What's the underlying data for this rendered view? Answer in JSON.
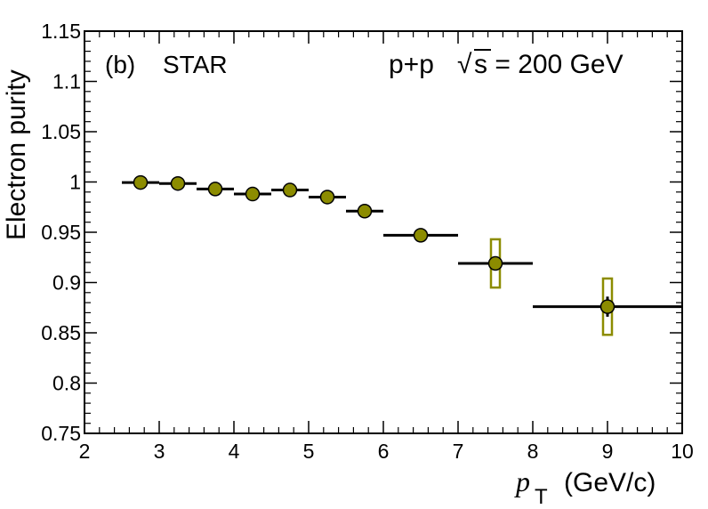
{
  "chart_data": {
    "type": "scatter",
    "title": "",
    "xlabel": "(GeV/c)",
    "xlabel_symbol": "p",
    "xlabel_subscript": "T",
    "ylabel": "Electron purity",
    "xlim": [
      2,
      10
    ],
    "ylim": [
      0.75,
      1.15
    ],
    "x_ticks": [
      "2",
      "3",
      "4",
      "5",
      "6",
      "7",
      "8",
      "9",
      "10"
    ],
    "y_ticks": [
      "0.75",
      "0.8",
      "0.85",
      "0.9",
      "0.95",
      "1",
      "1.05",
      "1.1",
      "1.15"
    ],
    "annotations": {
      "panel": "(b)",
      "experiment": "STAR",
      "system": "p+p",
      "sqrt_symbol": "√",
      "energy": "s = 200 GeV"
    },
    "colors": {
      "marker_fill": "#8c8c00",
      "marker_edge": "#000000",
      "syst_box": "#8c8c00",
      "line": "#000000"
    },
    "series": [
      {
        "name": "Electron purity",
        "points": [
          {
            "x": 2.75,
            "xlow": 2.5,
            "xhigh": 3.0,
            "y": 0.9995,
            "stat": 0.0,
            "syst": 0.0
          },
          {
            "x": 3.25,
            "xlow": 3.0,
            "xhigh": 3.5,
            "y": 0.9985,
            "stat": 0.0,
            "syst": 0.0
          },
          {
            "x": 3.75,
            "xlow": 3.5,
            "xhigh": 4.0,
            "y": 0.993,
            "stat": 0.0,
            "syst": 0.0
          },
          {
            "x": 4.25,
            "xlow": 4.0,
            "xhigh": 4.5,
            "y": 0.988,
            "stat": 0.0,
            "syst": 0.0
          },
          {
            "x": 4.75,
            "xlow": 4.5,
            "xhigh": 5.0,
            "y": 0.992,
            "stat": 0.0,
            "syst": 0.0
          },
          {
            "x": 5.25,
            "xlow": 5.0,
            "xhigh": 5.5,
            "y": 0.985,
            "stat": 0.0,
            "syst": 0.0
          },
          {
            "x": 5.75,
            "xlow": 5.5,
            "xhigh": 6.0,
            "y": 0.971,
            "stat": 0.0,
            "syst": 0.0
          },
          {
            "x": 6.5,
            "xlow": 6.0,
            "xhigh": 7.0,
            "y": 0.947,
            "stat": 0.0,
            "syst": 0.0
          },
          {
            "x": 7.5,
            "xlow": 7.0,
            "xhigh": 8.0,
            "y": 0.919,
            "stat": 0.005,
            "syst": 0.024
          },
          {
            "x": 9.0,
            "xlow": 8.0,
            "xhigh": 10.0,
            "y": 0.876,
            "stat": 0.01,
            "syst": 0.028
          }
        ]
      }
    ]
  }
}
